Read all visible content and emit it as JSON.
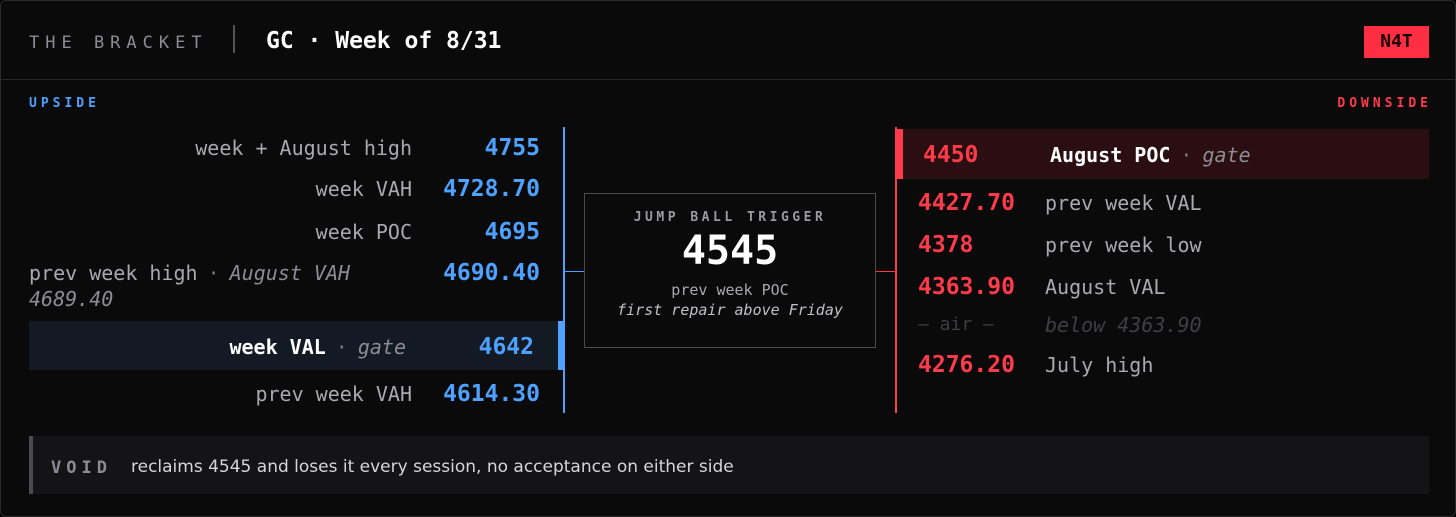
{
  "header": {
    "brand": "THE BRACKET",
    "title": "GC · Week of 8/31",
    "badge": "N4T"
  },
  "separator": "·",
  "upside": {
    "label": "UPSIDE",
    "levels": [
      {
        "label": "week + August high",
        "price": "4755"
      },
      {
        "label": "week VAH",
        "price": "4728.70"
      },
      {
        "label": "week POC",
        "price": "4695"
      },
      {
        "label": "prev week high",
        "note": "August VAH 4689.40",
        "price": "4690.40"
      },
      {
        "label": "week VAL",
        "note": "gate",
        "price": "4642",
        "highlight": true
      },
      {
        "label": "prev week VAH",
        "price": "4614.30"
      }
    ]
  },
  "trigger": {
    "label": "JUMP BALL TRIGGER",
    "price": "4545",
    "line1": "prev week POC",
    "line2": "first repair above Friday"
  },
  "downside": {
    "label": "DOWNSIDE",
    "levels": [
      {
        "price": "4450",
        "label": "August POC",
        "note": "gate",
        "highlight": true
      },
      {
        "price": "4427.70",
        "label": "prev week VAL"
      },
      {
        "price": "4378",
        "label": "prev week low"
      },
      {
        "price": "4363.90",
        "label": "August VAL"
      },
      {
        "price": "— air —",
        "label": "below 4363.90",
        "dim": true
      },
      {
        "price": "4276.20",
        "label": "July high"
      }
    ]
  },
  "footer": {
    "label": "VOID",
    "text": "reclaims 4545 and loses it every session, no acceptance on either side"
  }
}
